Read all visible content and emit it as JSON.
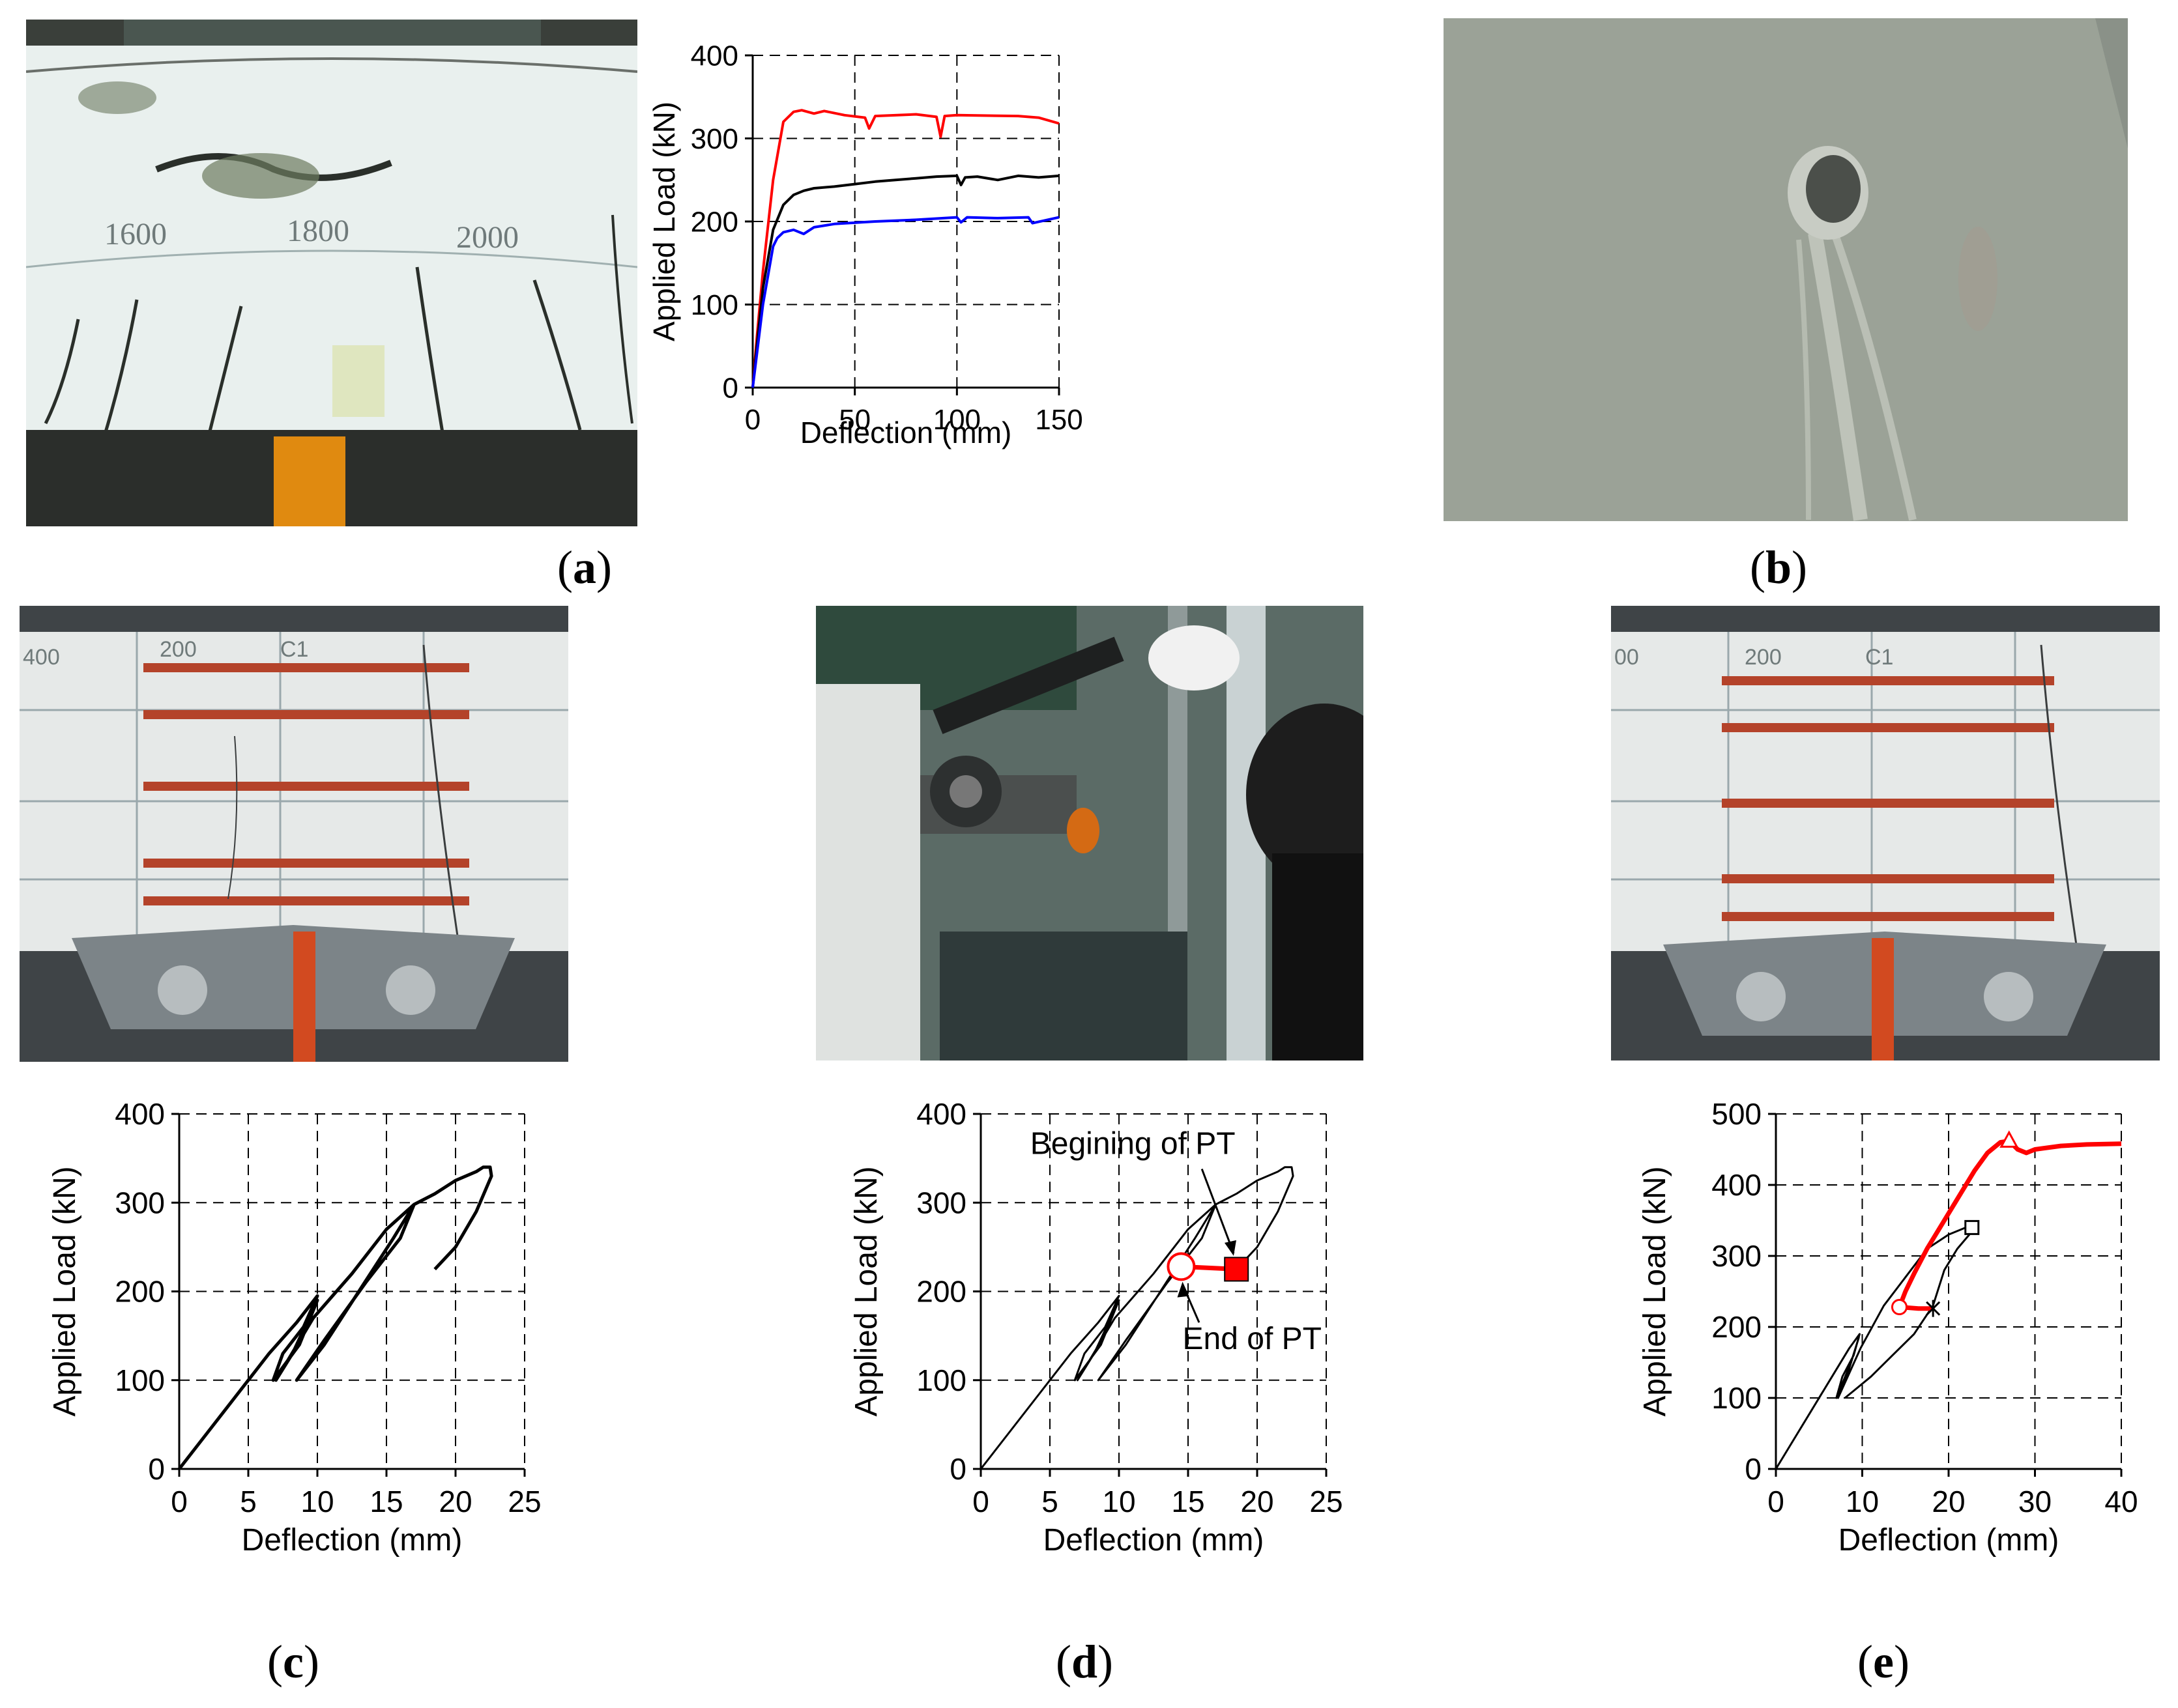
{
  "panels": {
    "a": {
      "label": "a"
    },
    "b": {
      "label": "b"
    },
    "c": {
      "label": "c"
    },
    "d": {
      "label": "d"
    },
    "e": {
      "label": "e"
    }
  },
  "photos": {
    "a_photo": {
      "markings": [
        "1600",
        "1800",
        "2000"
      ]
    },
    "c_photo": {
      "markings": [
        "400",
        "200",
        "C1"
      ]
    },
    "e_photo": {
      "markings": [
        "00",
        "200",
        "C1"
      ]
    }
  },
  "chart_data": [
    {
      "id": "a",
      "type": "line",
      "xlabel": "Deflection (mm)",
      "ylabel": "Applied Load (kN)",
      "xlim": [
        0,
        150
      ],
      "ylim": [
        0,
        400
      ],
      "xticks": [
        0,
        50,
        100,
        150
      ],
      "yticks": [
        0,
        100,
        200,
        300,
        400
      ],
      "grid": "dashed",
      "series": [
        {
          "color": "#ff0000",
          "x": [
            0,
            2,
            5,
            10,
            15,
            20,
            24,
            30,
            35,
            45,
            55,
            57,
            60,
            80,
            90,
            92,
            94,
            100,
            130,
            140,
            150
          ],
          "y": [
            0,
            60,
            140,
            250,
            320,
            332,
            334,
            330,
            333,
            328,
            325,
            312,
            327,
            329,
            326,
            302,
            327,
            328,
            327,
            325,
            318
          ]
        },
        {
          "color": "#000000",
          "x": [
            0,
            2,
            5,
            10,
            15,
            20,
            25,
            30,
            40,
            50,
            60,
            70,
            80,
            90,
            100,
            102,
            104,
            110,
            120,
            130,
            140,
            150
          ],
          "y": [
            0,
            50,
            120,
            190,
            220,
            232,
            237,
            240,
            242,
            245,
            248,
            250,
            252,
            254,
            255,
            244,
            253,
            254,
            250,
            255,
            253,
            255
          ]
        },
        {
          "color": "#0000ff",
          "x": [
            0,
            2,
            5,
            10,
            12,
            15,
            20,
            25,
            30,
            40,
            60,
            80,
            100,
            102,
            105,
            120,
            135,
            137,
            150
          ],
          "y": [
            0,
            40,
            100,
            170,
            180,
            187,
            190,
            185,
            193,
            197,
            200,
            202,
            205,
            199,
            205,
            204,
            205,
            198,
            205
          ]
        }
      ]
    },
    {
      "id": "c",
      "type": "line",
      "xlabel": "Deflection (mm)",
      "ylabel": "Applied Load (kN)",
      "xlim": [
        0,
        25
      ],
      "ylim": [
        0,
        400
      ],
      "xticks": [
        0,
        5,
        10,
        15,
        20,
        25
      ],
      "yticks": [
        0,
        100,
        200,
        300,
        400
      ],
      "grid": "dashed",
      "series": [
        {
          "color": "#000000",
          "x": [
            0,
            2,
            4,
            6.5,
            8.5,
            10,
            9,
            7.5,
            6.8,
            8.7,
            10,
            8.2,
            7,
            9.7,
            12.5,
            15,
            17,
            15.5,
            13,
            10.5,
            8.5,
            10.5,
            13.5,
            16,
            17,
            18.5,
            20,
            21.5,
            22,
            22.5,
            22.6,
            21.5,
            20,
            18.5
          ],
          "y": [
            0,
            40,
            80,
            130,
            165,
            195,
            160,
            130,
            100,
            140,
            190,
            130,
            100,
            170,
            220,
            270,
            298,
            260,
            200,
            140,
            100,
            145,
            210,
            260,
            298,
            310,
            325,
            335,
            340,
            340,
            330,
            290,
            250,
            225
          ]
        }
      ]
    },
    {
      "id": "d",
      "type": "line",
      "xlabel": "Deflection (mm)",
      "ylabel": "Applied Load (kN)",
      "xlim": [
        0,
        25
      ],
      "ylim": [
        0,
        400
      ],
      "xticks": [
        0,
        5,
        10,
        15,
        20,
        25
      ],
      "yticks": [
        0,
        100,
        200,
        300,
        400
      ],
      "grid": "dashed",
      "annotations": [
        {
          "text": "Begining of PT",
          "x": 18.5,
          "y": 225
        },
        {
          "text": "End of PT",
          "x": 14.5,
          "y": 228
        }
      ],
      "series": [
        {
          "color": "#000000",
          "x": [
            0,
            2,
            4,
            6.5,
            8.5,
            10,
            9,
            7.5,
            6.8,
            8.7,
            10,
            8.2,
            7,
            9.7,
            12.5,
            15,
            17,
            15.5,
            13,
            10.5,
            8.5,
            10.5,
            13.5,
            16,
            17,
            18.5,
            20,
            21.5,
            22,
            22.5,
            22.6,
            21.5,
            20,
            18.5
          ],
          "y": [
            0,
            40,
            80,
            130,
            165,
            195,
            160,
            130,
            100,
            140,
            190,
            130,
            100,
            170,
            220,
            270,
            298,
            260,
            200,
            140,
            100,
            145,
            210,
            260,
            298,
            310,
            325,
            335,
            340,
            340,
            330,
            290,
            250,
            225
          ]
        },
        {
          "color": "#ff0000",
          "x": [
            18.5,
            14.5
          ],
          "y": [
            225,
            228
          ]
        }
      ]
    },
    {
      "id": "e",
      "type": "line",
      "xlabel": "Deflection (mm)",
      "ylabel": "Applied Load (kN)",
      "xlim": [
        0,
        40
      ],
      "ylim": [
        0,
        500
      ],
      "xticks": [
        0,
        10,
        20,
        30,
        40
      ],
      "yticks": [
        0,
        100,
        200,
        300,
        400,
        500
      ],
      "grid": "dashed",
      "series": [
        {
          "color": "#000000",
          "x": [
            0,
            2,
            4,
            6.5,
            8.5,
            9.7,
            9,
            7.7,
            7,
            8.7,
            9.6,
            8.2,
            7.2,
            9.8,
            12.5,
            15,
            17.5,
            20,
            22,
            22.7,
            22.4,
            21,
            19.5,
            18.2,
            16,
            13.5,
            11,
            9,
            8
          ],
          "y": [
            0,
            40,
            80,
            130,
            170,
            190,
            160,
            130,
            100,
            150,
            185,
            130,
            100,
            170,
            230,
            270,
            310,
            330,
            340,
            340,
            330,
            310,
            280,
            230,
            190,
            160,
            130,
            110,
            100
          ]
        },
        {
          "color": "#ff0000",
          "x": [
            18.2,
            16.5,
            14.3,
            15,
            16,
            17.5,
            19,
            21,
            23,
            24.5,
            26,
            27,
            28,
            29,
            30,
            33,
            36,
            40
          ],
          "y": [
            226,
            226,
            228,
            250,
            275,
            310,
            340,
            380,
            420,
            445,
            460,
            462,
            450,
            445,
            450,
            455,
            457,
            458
          ]
        }
      ]
    }
  ]
}
